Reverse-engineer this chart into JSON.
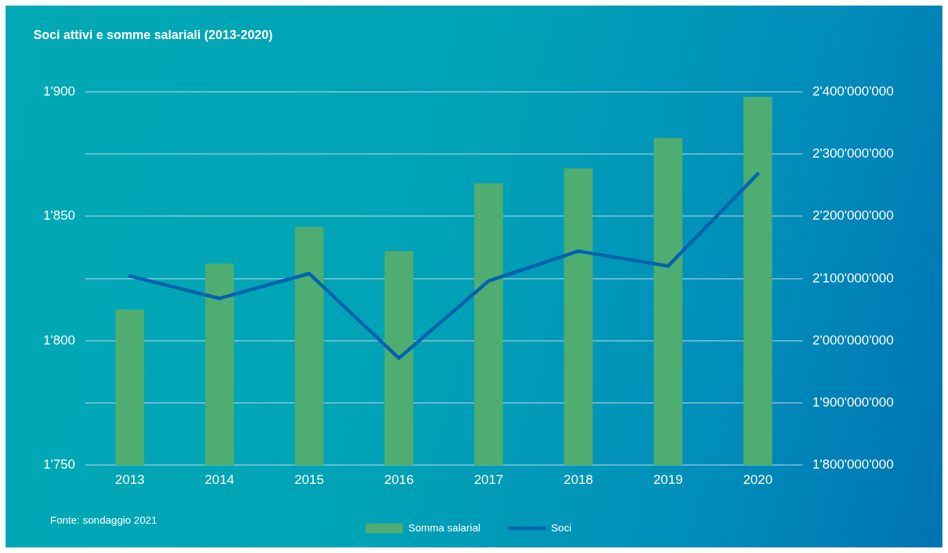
{
  "chart_data": {
    "type": "bar",
    "title": "Soci attivi e somme salariali (2013-2020)",
    "categories": [
      "2013",
      "2014",
      "2015",
      "2016",
      "2017",
      "2018",
      "2019",
      "2020"
    ],
    "series": [
      {
        "name": "Somma salarial",
        "axis": "y2",
        "color": "#4fad72",
        "values": [
          2050000000,
          2124000000,
          2183000000,
          2144000000,
          2253000000,
          2277000000,
          2326000000,
          2392000000
        ]
      },
      {
        "name": "Soci",
        "type": "line",
        "axis": "y",
        "color": "#0063ad",
        "values": [
          1826,
          1817,
          1827,
          1793,
          1824,
          1836,
          1830,
          1867
        ]
      }
    ],
    "ylim": [
      1750,
      1900
    ],
    "yticks": [
      {
        "value": 1750,
        "label": "1'750"
      },
      {
        "value": 1775,
        "label": null
      },
      {
        "value": 1800,
        "label": "1'800"
      },
      {
        "value": 1825,
        "label": null
      },
      {
        "value": 1850,
        "label": "1'850"
      },
      {
        "value": 1875,
        "label": null
      },
      {
        "value": 1900,
        "label": "1'900"
      }
    ],
    "y2lim": [
      1800000000,
      2400000000
    ],
    "y2ticks": [
      {
        "value": 1800000000,
        "label": "1'800'000'000"
      },
      {
        "value": 1900000000,
        "label": "1'900'000'000"
      },
      {
        "value": 2000000000,
        "label": "2'000'000'000"
      },
      {
        "value": 2100000000,
        "label": "2'100'000'000"
      },
      {
        "value": 2200000000,
        "label": "2'200'000'000"
      },
      {
        "value": 2300000000,
        "label": "2'300'000'000"
      },
      {
        "value": 2400000000,
        "label": "2'400'000'000"
      }
    ],
    "grid": "y",
    "legend": "bottom",
    "marker": "none",
    "line_style": "solid",
    "annotations": [
      "Fonte: sondaggio 2021"
    ]
  }
}
